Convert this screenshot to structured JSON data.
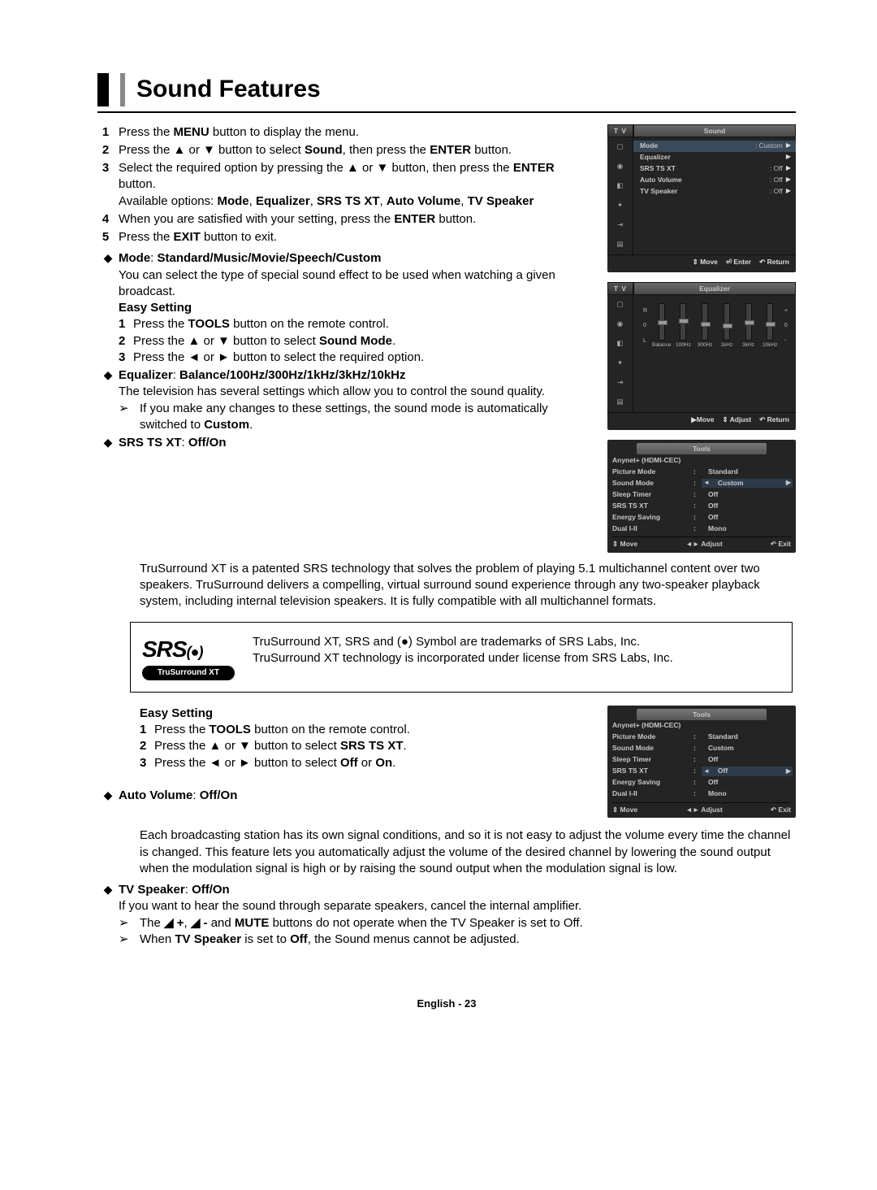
{
  "page": {
    "title": "Sound Features",
    "footer": "English - 23"
  },
  "steps": {
    "s1": "Press the <b>MENU</b> button to display the menu.",
    "s2": "Press the ▲ or ▼ button to select <b>Sound</b>, then press the <b>ENTER</b> button.",
    "s3a": "Select the required option by pressing the ▲ or ▼ button, then press the <b>ENTER</b> button.",
    "s3b": "Available options: <b>Mode</b>, <b>Equalizer</b>, <b>SRS TS XT</b>, <b>Auto Volume</b>, <b>TV Speaker</b>",
    "s4": "When you are satisfied with your setting, press the <b>ENTER</b> button.",
    "s5": "Press the <b>EXIT</b> button to exit."
  },
  "mode": {
    "head": "<b>Mode</b>: <b>Standard/Music/Movie/Speech/Custom</b>",
    "desc": "You can select the type of special sound effect to be used when watching a given broadcast.",
    "easy": "Easy Setting",
    "e1": "Press the <b>TOOLS</b> button on the remote control.",
    "e2": "Press the ▲ or ▼ button to select <b>Sound Mode</b>.",
    "e3": "Press the ◄ or ► button to select the required option."
  },
  "eq": {
    "head": "<b>Equalizer</b>: <b>Balance/100Hz/300Hz/1kHz/3kHz/10kHz</b>",
    "desc": "The television has several settings which allow you to control the sound quality.",
    "note": "If you make any changes to these settings, the sound mode is automatically switched to <b>Custom</b>."
  },
  "srs": {
    "head": "<b>SRS TS XT</b>: <b>Off/On</b>",
    "desc": "TruSurround XT is a patented SRS technology that solves the problem of playing 5.1 multichannel content over two speakers. TruSurround delivers a compelling, virtual surround sound experience through any two-speaker playback system, including internal television speakers. It is fully compatible with all multichannel formats.",
    "box1": "TruSurround XT, SRS and (●) Symbol are trademarks of SRS Labs, Inc.",
    "box2": "TruSurround XT technology is incorporated under license from SRS Labs, Inc.",
    "brand": "SRS",
    "pill": "TruSurround XT",
    "easy": "Easy Setting",
    "e1": "Press the <b>TOOLS</b> button on the remote control.",
    "e2": "Press the ▲ or ▼ button to select <b>SRS TS XT</b>.",
    "e3": "Press the ◄ or ► button to select <b>Off</b> or <b>On</b>."
  },
  "av": {
    "head": "<b>Auto Volume</b>: <b>Off/On</b>",
    "desc": "Each broadcasting station has its own signal conditions, and so it is not easy to adjust the volume every time the channel is changed. This feature lets you automatically adjust the volume of the desired channel by lowering the sound output when the modulation signal is high or by raising the sound output when the modulation signal is low."
  },
  "tvsp": {
    "head": "<b>TV Speaker</b>: <b>Off/On</b>",
    "desc": "If you want to hear the sound through separate speakers, cancel the internal amplifier.",
    "n1": "The <b>◢ +</b>, <b>◢ -</b> and <b>MUTE</b> buttons do not operate when the TV Speaker is set to Off.",
    "n2": "When <b>TV Speaker</b> is set to <b>Off</b>, the Sound menus cannot be adjusted."
  },
  "osd_sound": {
    "tab": "T V",
    "title": "Sound",
    "rows": [
      {
        "lab": "Mode",
        "val": ": Custom"
      },
      {
        "lab": "Equalizer",
        "val": ""
      },
      {
        "lab": "SRS TS XT",
        "val": ": Off"
      },
      {
        "lab": "Auto Volume",
        "val": ": Off"
      },
      {
        "lab": "TV Speaker",
        "val": ": Off"
      }
    ],
    "foot": {
      "a": "⇕ Move",
      "b": "⏎ Enter",
      "c": "↶ Return"
    }
  },
  "osd_eq": {
    "tab": "T V",
    "title": "Equalizer",
    "labels": [
      "Balance",
      "100Hz",
      "300Hz",
      "1kHz",
      "3kHz",
      "10kHz"
    ],
    "markers": [
      20,
      18,
      22,
      24,
      20,
      22
    ],
    "sideL": {
      "t": "R",
      "m": "0",
      "b": "L"
    },
    "sideR": {
      "t": "+",
      "m": "0",
      "b": "-"
    },
    "foot": {
      "a": "▶Move",
      "b": "⇕ Adjust",
      "c": "↶ Return"
    }
  },
  "osd_tools1": {
    "title": "Tools",
    "rows": [
      {
        "lab": "Anynet+ (HDMI-CEC)",
        "val": ""
      },
      {
        "lab": "Picture Mode",
        "val": "Standard"
      },
      {
        "lab": "Sound Mode",
        "val": "Custom",
        "hl": true
      },
      {
        "lab": "Sleep Timer",
        "val": "Off"
      },
      {
        "lab": "SRS TS XT",
        "val": "Off"
      },
      {
        "lab": "Energy Saving",
        "val": "Off"
      },
      {
        "lab": "Dual I-II",
        "val": "Mono"
      }
    ],
    "foot": {
      "a": "⇕ Move",
      "b": "◄► Adjust",
      "c": "↶ Exit"
    }
  },
  "osd_tools2": {
    "title": "Tools",
    "rows": [
      {
        "lab": "Anynet+ (HDMI-CEC)",
        "val": ""
      },
      {
        "lab": "Picture Mode",
        "val": "Standard"
      },
      {
        "lab": "Sound Mode",
        "val": "Custom"
      },
      {
        "lab": "Sleep Timer",
        "val": "Off"
      },
      {
        "lab": "SRS TS XT",
        "val": "Off",
        "hl": true
      },
      {
        "lab": "Energy Saving",
        "val": "Off"
      },
      {
        "lab": "Dual I-II",
        "val": "Mono"
      }
    ],
    "foot": {
      "a": "⇕ Move",
      "b": "◄► Adjust",
      "c": "↶ Exit"
    }
  }
}
